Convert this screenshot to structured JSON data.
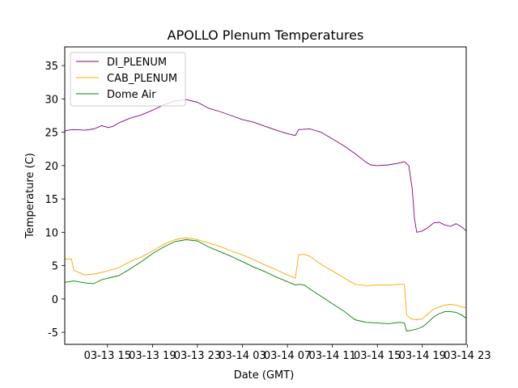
{
  "chart_data": {
    "type": "line",
    "title": "APOLLO Plenum Temperatures",
    "xlabel": "Date (GMT)",
    "ylabel": "Temperature (C)",
    "xlim_hours": [
      11.2,
      46.9
    ],
    "ylim": [
      -6.8,
      37.8
    ],
    "legend_position": "top-left",
    "x_ticks": [
      {
        "hour": 15,
        "label": "03-13 15"
      },
      {
        "hour": 19,
        "label": "03-13 19"
      },
      {
        "hour": 23,
        "label": "03-13 23"
      },
      {
        "hour": 27,
        "label": "03-14 03"
      },
      {
        "hour": 31,
        "label": "03-14 07"
      },
      {
        "hour": 35,
        "label": "03-14 11"
      },
      {
        "hour": 39,
        "label": "03-14 15"
      },
      {
        "hour": 43,
        "label": "03-14 19"
      },
      {
        "hour": 47,
        "label": "03-14 23"
      }
    ],
    "y_ticks": [
      -5,
      0,
      5,
      10,
      15,
      20,
      25,
      30,
      35
    ],
    "series": [
      {
        "name": "DI_PLENUM",
        "color": "#800080",
        "x": [
          11.2,
          11.5,
          12,
          13,
          13.8,
          14.5,
          15.1,
          15.5,
          16,
          17,
          18,
          19,
          20,
          21,
          22,
          23,
          24,
          25,
          26,
          27,
          28,
          29,
          30,
          31,
          31.7,
          32,
          33,
          34,
          35,
          36,
          37,
          38,
          38.4,
          39,
          40,
          41,
          41.4,
          41.8,
          42.1,
          42.3,
          42.5,
          43,
          43.5,
          44,
          44.5,
          45,
          45.5,
          46,
          46.5,
          46.9
        ],
        "values": [
          25.2,
          25.3,
          25.4,
          25.3,
          25.5,
          26,
          25.7,
          25.9,
          26.4,
          27.1,
          27.6,
          28.3,
          29.1,
          29.7,
          29.9,
          29.5,
          28.6,
          28.1,
          27.5,
          26.9,
          26.5,
          25.9,
          25.3,
          24.8,
          24.5,
          25.4,
          25.5,
          25,
          24,
          23,
          21.8,
          20.5,
          20.1,
          20,
          20.1,
          20.4,
          20.6,
          20,
          16.5,
          12,
          10,
          10.2,
          10.7,
          11.4,
          11.5,
          11.1,
          10.9,
          11.3,
          10.8,
          10.2
        ]
      },
      {
        "name": "CAB_PLENUM",
        "color": "#ffa500",
        "x": [
          11.2,
          11.8,
          12,
          13,
          14,
          15,
          16,
          17,
          18,
          19,
          20,
          21,
          22,
          23,
          24,
          25,
          26,
          27,
          28,
          29,
          30,
          31,
          31.5,
          31.7,
          32,
          32.5,
          33,
          34,
          35,
          36,
          37,
          38,
          39,
          40,
          41,
          41.4,
          41.6,
          42,
          42.5,
          43,
          43.5,
          44,
          44.5,
          45,
          45.5,
          46,
          46.5,
          46.9
        ],
        "values": [
          6,
          6,
          4.3,
          3.6,
          3.8,
          4.2,
          4.7,
          5.6,
          6.3,
          7.2,
          8.2,
          8.9,
          9.2,
          8.9,
          8.4,
          7.9,
          7.2,
          6.6,
          5.9,
          5.1,
          4.4,
          3.6,
          3.3,
          3.1,
          6.6,
          6.7,
          6.4,
          5.2,
          4.2,
          3.2,
          2.2,
          2,
          2.1,
          2.1,
          2.2,
          2.2,
          -2.4,
          -3,
          -3.1,
          -3,
          -2.2,
          -1.5,
          -1.2,
          -0.9,
          -0.8,
          -0.9,
          -1.2,
          -1.3
        ]
      },
      {
        "name": "Dome Air",
        "color": "#008000",
        "x": [
          11.2,
          12,
          13,
          13.8,
          14.5,
          15,
          16,
          17,
          18,
          19,
          20,
          21,
          22,
          23,
          24,
          25,
          26,
          27,
          28,
          29,
          30,
          31,
          31.7,
          32,
          32.5,
          33,
          34,
          35,
          36,
          37,
          38,
          39,
          40,
          41,
          41.4,
          41.6,
          42,
          42.5,
          43,
          43.5,
          44,
          44.5,
          45,
          45.5,
          46,
          46.5,
          46.9
        ],
        "values": [
          2.5,
          2.7,
          2.4,
          2.3,
          2.9,
          3.1,
          3.5,
          4.5,
          5.6,
          6.8,
          7.8,
          8.6,
          8.9,
          8.7,
          7.8,
          7.1,
          6.4,
          5.6,
          4.8,
          4.1,
          3.3,
          2.6,
          2.1,
          2.2,
          2.1,
          1.5,
          0.4,
          -0.7,
          -1.8,
          -3.1,
          -3.5,
          -3.6,
          -3.7,
          -3.5,
          -3.6,
          -4.8,
          -4.7,
          -4.5,
          -4.2,
          -3.5,
          -2.7,
          -2.2,
          -1.9,
          -1.9,
          -2,
          -2.4,
          -2.9
        ]
      }
    ]
  }
}
